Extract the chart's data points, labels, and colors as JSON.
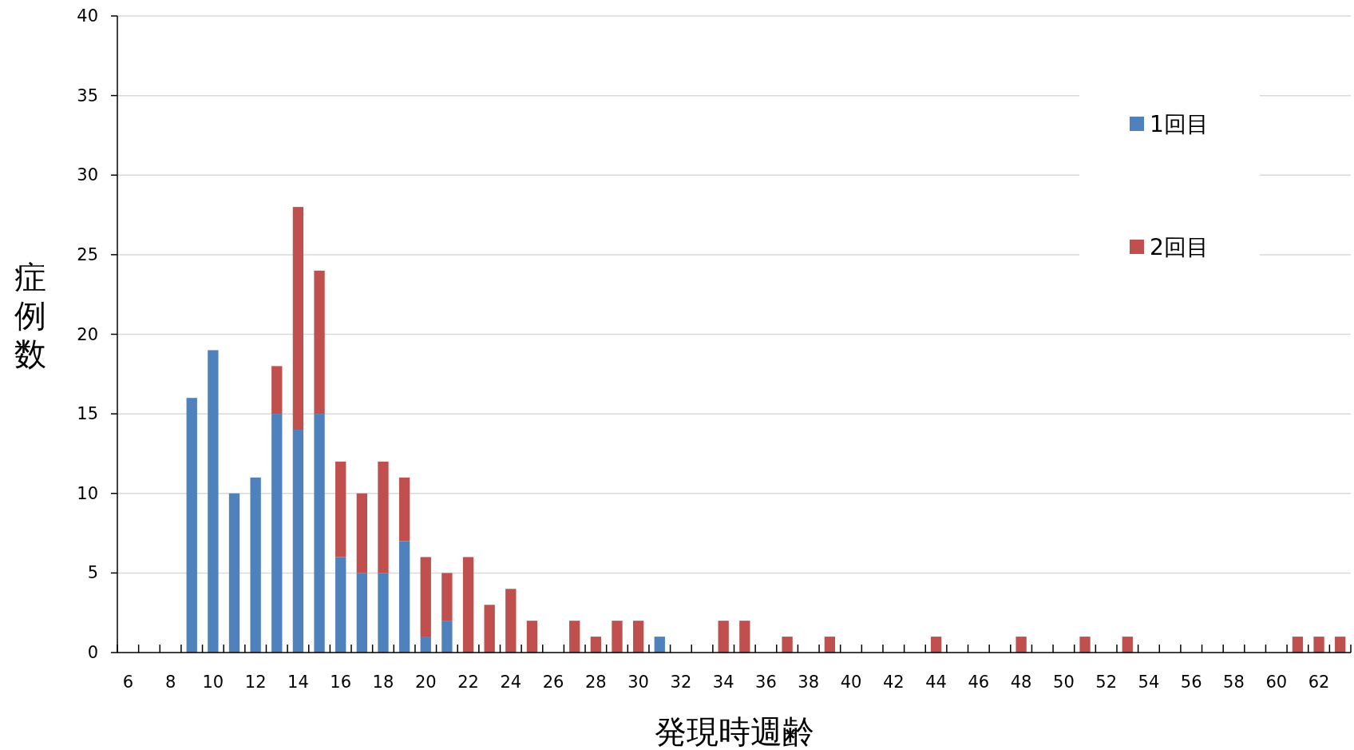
{
  "chart_data": {
    "type": "bar",
    "stacked": true,
    "xlabel": "発現時週齢",
    "ylabel": "症例数",
    "categories": [
      "6",
      null,
      "8",
      null,
      "10",
      null,
      "12",
      null,
      "14",
      null,
      "16",
      null,
      "18",
      null,
      "20",
      null,
      "22",
      null,
      "24",
      null,
      "26",
      null,
      "28",
      null,
      "30",
      null,
      "32",
      null,
      "34",
      null,
      "36",
      null,
      "38",
      null,
      "40",
      null,
      "42",
      null,
      "44",
      null,
      "46",
      null,
      "48",
      null,
      "50",
      null,
      "52",
      null,
      "54",
      null,
      "56",
      null,
      "58",
      null,
      "60",
      null,
      "62",
      null
    ],
    "series": [
      {
        "name": "1回目",
        "color": "#4f81bd",
        "values": [
          0,
          0,
          0,
          16,
          19,
          10,
          11,
          15,
          14,
          15,
          6,
          5,
          5,
          7,
          1,
          2,
          0,
          0,
          0,
          0,
          0,
          0,
          0,
          0,
          0,
          1,
          0,
          0,
          0,
          0,
          0,
          0,
          0,
          0,
          0,
          0,
          0,
          0,
          0,
          0,
          0,
          0,
          0,
          0,
          0,
          0,
          0,
          0,
          0,
          0,
          0,
          0,
          0,
          0,
          0,
          0,
          0,
          0
        ]
      },
      {
        "name": "2回目",
        "color": "#c0504d",
        "values": [
          0,
          0,
          0,
          0,
          0,
          0,
          0,
          3,
          14,
          9,
          6,
          5,
          7,
          4,
          5,
          3,
          6,
          3,
          4,
          2,
          0,
          2,
          1,
          2,
          2,
          0,
          0,
          0,
          2,
          2,
          0,
          1,
          0,
          1,
          0,
          0,
          0,
          0,
          1,
          0,
          0,
          0,
          1,
          0,
          0,
          1,
          0,
          1,
          0,
          0,
          0,
          0,
          0,
          0,
          0,
          1,
          1,
          1
        ]
      }
    ],
    "ylim": [
      0,
      40
    ],
    "yticks": [
      0,
      5,
      10,
      15,
      20,
      25,
      30,
      35,
      40
    ],
    "grid": "y",
    "legend": "top right"
  }
}
